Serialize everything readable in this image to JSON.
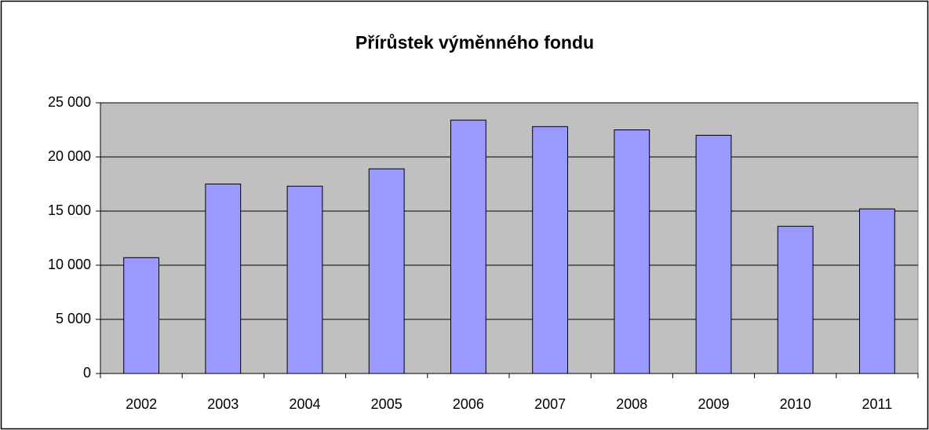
{
  "chart_data": {
    "type": "bar",
    "title": "Přírůstek výměnného fondu",
    "categories": [
      "2002",
      "2003",
      "2004",
      "2005",
      "2006",
      "2007",
      "2008",
      "2009",
      "2010",
      "2011"
    ],
    "values": [
      10700,
      17500,
      17300,
      18900,
      23400,
      22800,
      22500,
      22000,
      13600,
      15200
    ],
    "color": "#9999ff",
    "ylim": [
      0,
      25000
    ],
    "yticks": [
      0,
      {
        "value": 5000,
        "label": "5 000"
      },
      {
        "value": 10000,
        "label": "10 000"
      },
      {
        "value": 15000,
        "label": "15 000"
      },
      {
        "value": 20000,
        "label": "20 000"
      },
      {
        "value": 25000,
        "label": "25 000"
      }
    ],
    "grid": true
  }
}
